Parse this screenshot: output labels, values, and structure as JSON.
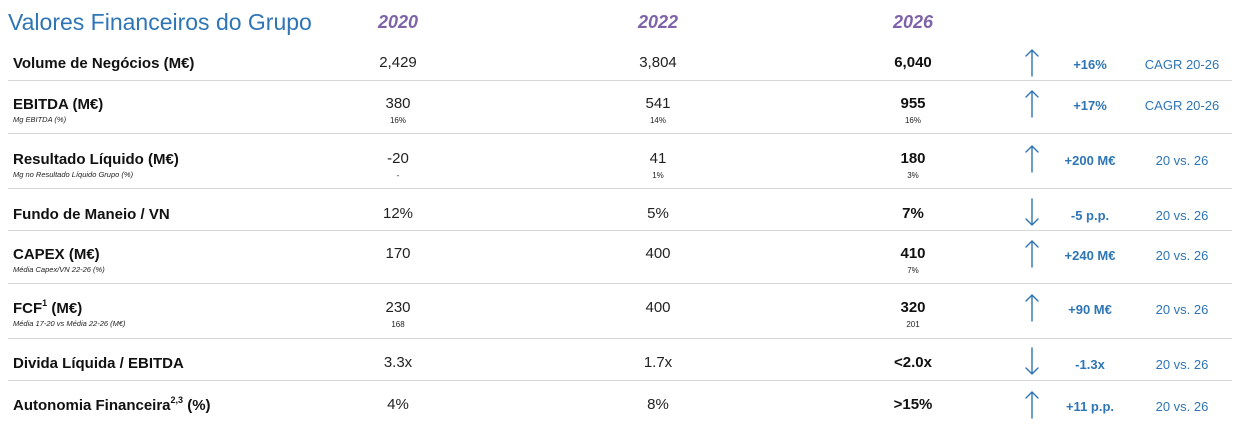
{
  "title": "Valores Financeiros do Grupo",
  "years": [
    "2020",
    "2022",
    "2026"
  ],
  "rows": [
    {
      "label": "Volume de Negócios (M€)",
      "sup": "",
      "label_suffix": "",
      "sub": "",
      "v2020": "2,429",
      "v2022": "3,804",
      "v2026": "6,040",
      "s2020": "",
      "s2022": "",
      "s2026": "",
      "arrow": "up",
      "delta": "+16%",
      "period": "CAGR 20-26"
    },
    {
      "label": "EBITDA (M€)",
      "sup": "",
      "label_suffix": "",
      "sub": "Mg EBITDA (%)",
      "v2020": "380",
      "v2022": "541",
      "v2026": "955",
      "s2020": "16%",
      "s2022": "14%",
      "s2026": "16%",
      "arrow": "up",
      "delta": "+17%",
      "period": "CAGR 20-26"
    },
    {
      "label": "Resultado Líquido (M€)",
      "sup": "",
      "label_suffix": "",
      "sub": "Mg no Resultado Líquido Grupo (%)",
      "v2020": "-20",
      "v2022": "41",
      "v2026": "180",
      "s2020": "-",
      "s2022": "1%",
      "s2026": "3%",
      "arrow": "up",
      "delta": "+200 M€",
      "period": "20 vs. 26"
    },
    {
      "label": "Fundo de Maneio / VN",
      "sup": "",
      "label_suffix": "",
      "sub": "",
      "v2020": "12%",
      "v2022": "5%",
      "v2026": "7%",
      "s2020": "",
      "s2022": "",
      "s2026": "",
      "arrow": "down",
      "delta": "-5 p.p.",
      "period": "20 vs. 26"
    },
    {
      "label": "CAPEX (M€)",
      "sup": "",
      "label_suffix": "",
      "sub": "Média Capex/VN 22-26 (%)",
      "v2020": "170",
      "v2022": "400",
      "v2026": "410",
      "s2020": "",
      "s2022": "",
      "s2026": "7%",
      "arrow": "up",
      "delta": "+240 M€",
      "period": "20 vs. 26"
    },
    {
      "label": "FCF",
      "sup": "1",
      "label_suffix": " (M€)",
      "sub": "Média 17-20 vs Média 22-26 (M€)",
      "v2020": "230",
      "v2022": "400",
      "v2026": "320",
      "s2020": "168",
      "s2022": "",
      "s2026": "201",
      "arrow": "up",
      "delta": "+90 M€",
      "period": "20 vs. 26"
    },
    {
      "label": "Divida Líquida / EBITDA",
      "sup": "",
      "label_suffix": "",
      "sub": "",
      "v2020": "3.3x",
      "v2022": "1.7x",
      "v2026": "<2.0x",
      "s2020": "",
      "s2022": "",
      "s2026": "",
      "arrow": "down",
      "delta": "-1.3x",
      "period": "20 vs. 26"
    },
    {
      "label": "Autonomia Financeira",
      "sup": "2,3",
      "label_suffix": " (%)",
      "sub": "",
      "v2020": "4%",
      "v2022": "8%",
      "v2026": ">15%",
      "s2020": "",
      "s2022": "",
      "s2026": "",
      "arrow": "up",
      "delta": "+11 p.p.",
      "period": "20 vs. 26"
    }
  ],
  "colors": {
    "title": "#2e75b6",
    "years": "#7f63a8",
    "accent": "#2e75b6"
  }
}
